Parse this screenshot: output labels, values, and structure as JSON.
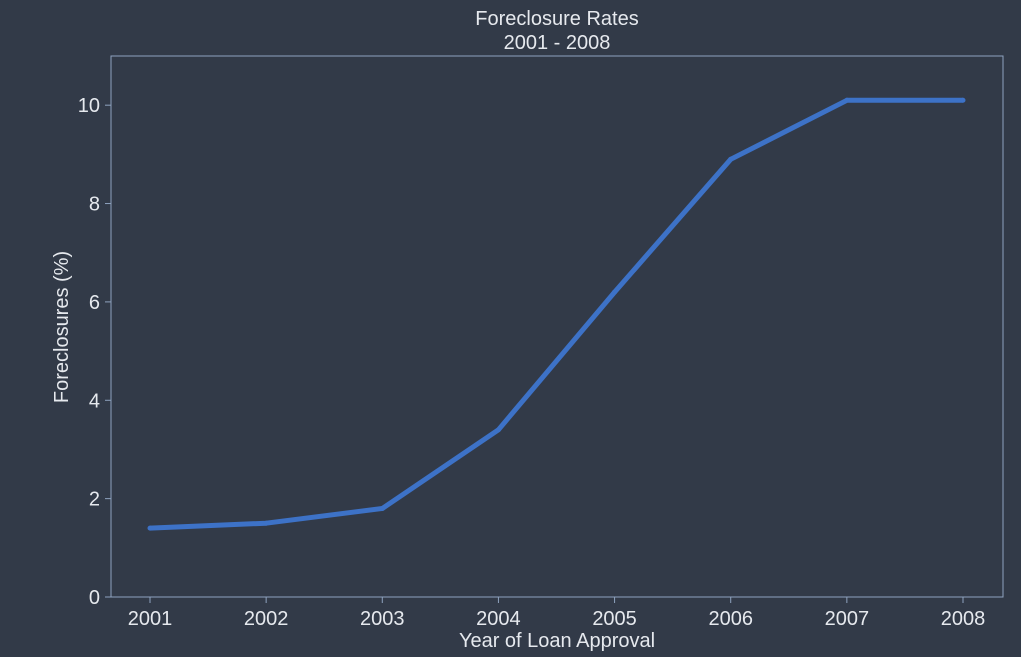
{
  "chart_data": {
    "type": "line",
    "title": "Foreclosure Rates",
    "subtitle": "2001 - 2008",
    "xlabel": "Year of Loan Approval",
    "ylabel": "Foreclosures (%)",
    "categories": [
      "2001",
      "2002",
      "2003",
      "2004",
      "2005",
      "2006",
      "2007",
      "2008"
    ],
    "series": [
      {
        "values": [
          1.4,
          1.5,
          1.8,
          3.4,
          6.2,
          8.9,
          10.1,
          10.1
        ]
      }
    ],
    "ylim": [
      0,
      11
    ],
    "yticks": [
      0,
      2,
      4,
      6,
      8,
      10
    ],
    "grid": false,
    "colors": {
      "background": "#323a48",
      "line": "#3d72c7",
      "axes": "#8fa3bf",
      "text": "#e6e9ee"
    }
  }
}
